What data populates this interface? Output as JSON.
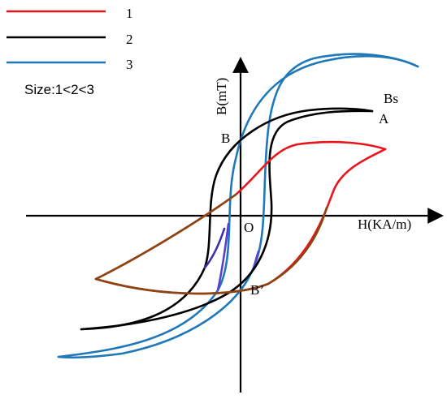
{
  "legend": {
    "items": [
      {
        "label": "1",
        "color": "#e8161c"
      },
      {
        "label": "2",
        "color": "#000000"
      },
      {
        "label": "3",
        "color": "#1f78b8"
      }
    ],
    "size_note": "Size:1<2<3"
  },
  "axes": {
    "y_label": "B(mT)",
    "x_label": "H(KA/m)",
    "origin_label": "O"
  },
  "points": {
    "bs": "Bs",
    "a": "A",
    "b": "B",
    "b_prime": "B’"
  },
  "colors": {
    "loop1": "#e8161c",
    "loop1_overlap": "#8b4513",
    "loop2": "#000000",
    "loop2_overlap": "#3a2fb0",
    "loop3": "#1f78b8",
    "loop3_overlap": "#5b3fd0"
  }
}
